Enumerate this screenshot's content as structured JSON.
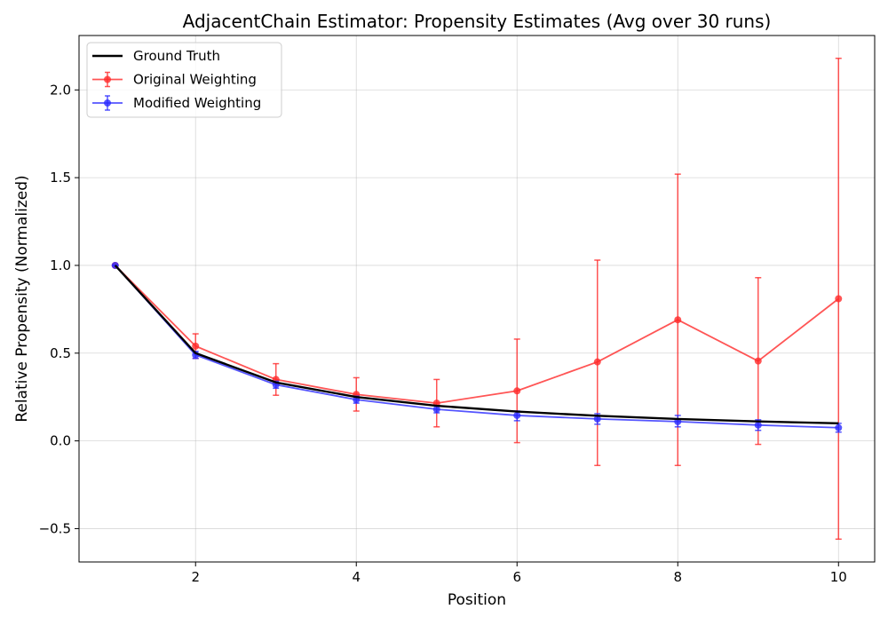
{
  "chart_data": {
    "type": "line",
    "title": "AdjacentChain Estimator: Propensity Estimates (Avg over 30 runs)",
    "xlabel": "Position",
    "ylabel": "Relative Propensity (Normalized)",
    "xlim": [
      0.55,
      10.45
    ],
    "ylim": [
      -0.69,
      2.31
    ],
    "xticks": [
      2,
      4,
      6,
      8,
      10
    ],
    "xtick_labels": [
      "2",
      "4",
      "6",
      "8",
      "10"
    ],
    "yticks": [
      -0.5,
      0.0,
      0.5,
      1.0,
      1.5,
      2.0
    ],
    "ytick_labels": [
      "−0.5",
      "0.0",
      "0.5",
      "1.0",
      "1.5",
      "2.0"
    ],
    "grid": true,
    "legend_position": "top-left",
    "x": [
      1,
      2,
      3,
      4,
      5,
      6,
      7,
      8,
      9,
      10
    ],
    "series": [
      {
        "name": "Ground Truth",
        "color": "#000000",
        "marker": false,
        "values": [
          1.0,
          0.5,
          0.333,
          0.25,
          0.2,
          0.167,
          0.143,
          0.125,
          0.111,
          0.1
        ]
      },
      {
        "name": "Original Weighting",
        "color": "#ff2a2a",
        "marker": true,
        "values": [
          1.0,
          0.54,
          0.35,
          0.265,
          0.215,
          0.285,
          0.45,
          0.69,
          0.455,
          0.81
        ],
        "err_low": [
          1.0,
          0.47,
          0.26,
          0.17,
          0.08,
          -0.01,
          -0.14,
          -0.14,
          -0.02,
          -0.56
        ],
        "err_high": [
          1.0,
          0.61,
          0.44,
          0.36,
          0.35,
          0.58,
          1.03,
          1.52,
          0.93,
          2.18
        ]
      },
      {
        "name": "Modified Weighting",
        "color": "#2a2aff",
        "marker": true,
        "values": [
          1.0,
          0.49,
          0.32,
          0.235,
          0.18,
          0.145,
          0.125,
          0.11,
          0.09,
          0.075
        ],
        "err_low": [
          1.0,
          0.47,
          0.3,
          0.215,
          0.16,
          0.115,
          0.095,
          0.08,
          0.06,
          0.05
        ],
        "err_high": [
          1.0,
          0.51,
          0.34,
          0.255,
          0.2,
          0.17,
          0.155,
          0.145,
          0.12,
          0.1
        ]
      }
    ]
  }
}
